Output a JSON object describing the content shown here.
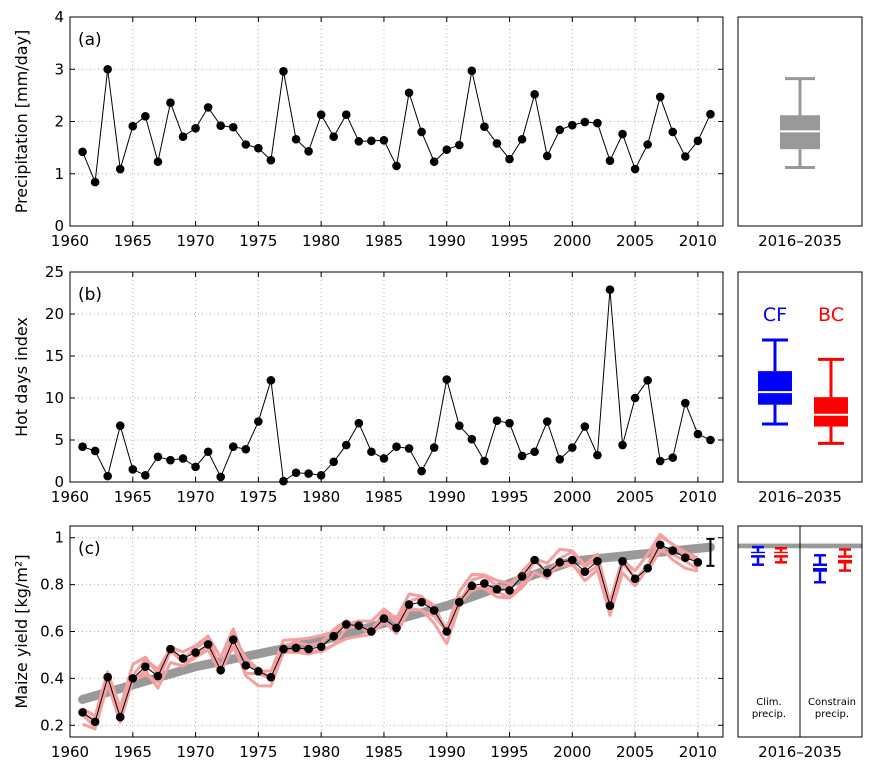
{
  "chart_data": [
    {
      "type": "line",
      "panel_label": "(a)",
      "ylabel": "Precipitation  [mm/day]",
      "xlim": [
        1960,
        2012
      ],
      "ylim": [
        0,
        4
      ],
      "xticks": [
        1960,
        1965,
        1970,
        1975,
        1980,
        1985,
        1990,
        1995,
        2000,
        2005,
        2010
      ],
      "yticks": [
        0,
        1,
        2,
        3,
        4
      ],
      "grid": true,
      "x": [
        1961,
        1962,
        1963,
        1964,
        1965,
        1966,
        1967,
        1968,
        1969,
        1970,
        1971,
        1972,
        1973,
        1974,
        1975,
        1976,
        1977,
        1978,
        1979,
        1980,
        1981,
        1982,
        1983,
        1984,
        1985,
        1986,
        1987,
        1988,
        1989,
        1990,
        1991,
        1992,
        1993,
        1994,
        1995,
        1996,
        1997,
        1998,
        1999,
        2000,
        2001,
        2002,
        2003,
        2004,
        2005,
        2006,
        2007,
        2008,
        2009,
        2010,
        2011
      ],
      "values": [
        1.42,
        0.84,
        3.0,
        1.09,
        1.91,
        2.1,
        1.23,
        2.36,
        1.71,
        1.87,
        2.27,
        1.92,
        1.89,
        1.56,
        1.49,
        1.26,
        2.96,
        1.66,
        1.43,
        2.13,
        1.71,
        2.13,
        1.62,
        1.63,
        1.64,
        1.15,
        2.55,
        1.8,
        1.23,
        1.46,
        1.55,
        2.97,
        1.9,
        1.58,
        1.28,
        1.66,
        2.52,
        1.34,
        1.84,
        1.93,
        1.99,
        1.97,
        1.25,
        1.76,
        1.09,
        1.56,
        2.47,
        1.8,
        1.33,
        1.63,
        2.14
      ]
    },
    {
      "type": "line",
      "panel_label": "(b)",
      "ylabel": "Hot days index",
      "xlim": [
        1960,
        2012
      ],
      "ylim": [
        0,
        25
      ],
      "xticks": [
        1960,
        1965,
        1970,
        1975,
        1980,
        1985,
        1990,
        1995,
        2000,
        2005,
        2010
      ],
      "yticks": [
        0,
        5,
        10,
        15,
        20,
        25
      ],
      "grid": true,
      "x": [
        1961,
        1962,
        1963,
        1964,
        1965,
        1966,
        1967,
        1968,
        1969,
        1970,
        1971,
        1972,
        1973,
        1974,
        1975,
        1976,
        1977,
        1978,
        1979,
        1980,
        1981,
        1982,
        1983,
        1984,
        1985,
        1986,
        1987,
        1988,
        1989,
        1990,
        1991,
        1992,
        1993,
        1994,
        1995,
        1996,
        1997,
        1998,
        1999,
        2000,
        2001,
        2002,
        2003,
        2004,
        2005,
        2006,
        2007,
        2008,
        2009,
        2010,
        2011
      ],
      "values": [
        4.2,
        3.7,
        0.7,
        6.7,
        1.5,
        0.8,
        3.0,
        2.6,
        2.8,
        1.8,
        3.6,
        0.6,
        4.2,
        3.9,
        7.2,
        12.1,
        0.1,
        1.1,
        1.0,
        0.8,
        2.4,
        4.4,
        7.0,
        3.6,
        2.8,
        4.2,
        4.0,
        1.3,
        4.1,
        12.2,
        6.7,
        5.1,
        2.5,
        7.3,
        7.0,
        3.1,
        3.6,
        7.2,
        2.7,
        4.1,
        6.6,
        3.2,
        22.9,
        4.4,
        10.0,
        12.1,
        2.5,
        2.9,
        9.4,
        5.7,
        5.0
      ]
    },
    {
      "type": "line",
      "panel_label": "(c)",
      "ylabel": "Maize yield [kg/m²]",
      "xlim": [
        1960,
        2012
      ],
      "ylim": [
        0.15,
        1.05
      ],
      "xticks": [
        1960,
        1965,
        1970,
        1975,
        1980,
        1985,
        1990,
        1995,
        2000,
        2005,
        2010
      ],
      "yticks": [
        0.2,
        0.4,
        0.6,
        0.8,
        1.0
      ],
      "ytick_labels": [
        "0.2",
        "0.4",
        "0.6",
        "0.8",
        "1"
      ],
      "grid": true,
      "x": [
        1961,
        1962,
        1963,
        1964,
        1965,
        1966,
        1967,
        1968,
        1969,
        1970,
        1971,
        1972,
        1973,
        1974,
        1975,
        1976,
        1977,
        1978,
        1979,
        1980,
        1981,
        1982,
        1983,
        1984,
        1985,
        1986,
        1987,
        1988,
        1989,
        1990,
        1991,
        1992,
        1993,
        1994,
        1995,
        1996,
        1997,
        1998,
        1999,
        2000,
        2001,
        2002,
        2003,
        2004,
        2005,
        2006,
        2007,
        2008,
        2009,
        2010
      ],
      "values": [
        0.255,
        0.215,
        0.405,
        0.235,
        0.4,
        0.45,
        0.41,
        0.525,
        0.485,
        0.51,
        0.545,
        0.435,
        0.565,
        0.455,
        0.43,
        0.405,
        0.525,
        0.53,
        0.525,
        0.535,
        0.58,
        0.63,
        0.625,
        0.6,
        0.655,
        0.615,
        0.715,
        0.725,
        0.69,
        0.6,
        0.725,
        0.795,
        0.805,
        0.78,
        0.775,
        0.835,
        0.905,
        0.85,
        0.895,
        0.905,
        0.855,
        0.9,
        0.71,
        0.9,
        0.825,
        0.87,
        0.97,
        0.945,
        0.915,
        0.895
      ],
      "trend": {
        "x": [
          1961,
          1970,
          1980,
          1990,
          2000,
          2011
        ],
        "values": [
          0.31,
          0.45,
          0.56,
          0.71,
          0.9,
          0.96
        ]
      },
      "ensemble_offsets": [
        -0.05,
        -0.025,
        0.025,
        0.05
      ],
      "errorbar": {
        "x": 2011,
        "low": 0.88,
        "high": 0.995
      }
    }
  ],
  "boxplots": {
    "xlabel": "2016–2035",
    "a": {
      "color": "#999999",
      "whisker_low": 1.12,
      "q1": 1.47,
      "median": 1.81,
      "q3": 2.12,
      "whisker_high": 2.82
    },
    "b": {
      "series": [
        {
          "name": "CF",
          "color": "#0000ff",
          "whisker_low": 6.9,
          "q1": 9.2,
          "median": 10.7,
          "q3": 13.2,
          "whisker_high": 16.9
        },
        {
          "name": "BC",
          "color": "#ff0000",
          "whisker_low": 4.6,
          "q1": 6.6,
          "median": 8.0,
          "q3": 10.1,
          "whisker_high": 14.6
        }
      ]
    },
    "c": {
      "band": [
        0.955,
        0.975
      ],
      "groups": [
        {
          "label_line1": "Clim.",
          "label_line2": "precip.",
          "boxes": [
            {
              "color": "#0000ff",
              "whisker_low": 0.885,
              "q1": 0.915,
              "median": 0.93,
              "q3": 0.94,
              "whisker_high": 0.96
            },
            {
              "color": "#ff0000",
              "whisker_low": 0.895,
              "q1": 0.915,
              "median": 0.93,
              "q3": 0.94,
              "whisker_high": 0.955
            }
          ]
        },
        {
          "label_line1": "Constrain",
          "label_line2": "precip.",
          "boxes": [
            {
              "color": "#0000ff",
              "whisker_low": 0.81,
              "q1": 0.855,
              "median": 0.875,
              "q3": 0.89,
              "whisker_high": 0.925
            },
            {
              "color": "#ff0000",
              "whisker_low": 0.86,
              "q1": 0.89,
              "median": 0.91,
              "q3": 0.925,
              "whisker_high": 0.95
            }
          ]
        }
      ]
    }
  }
}
